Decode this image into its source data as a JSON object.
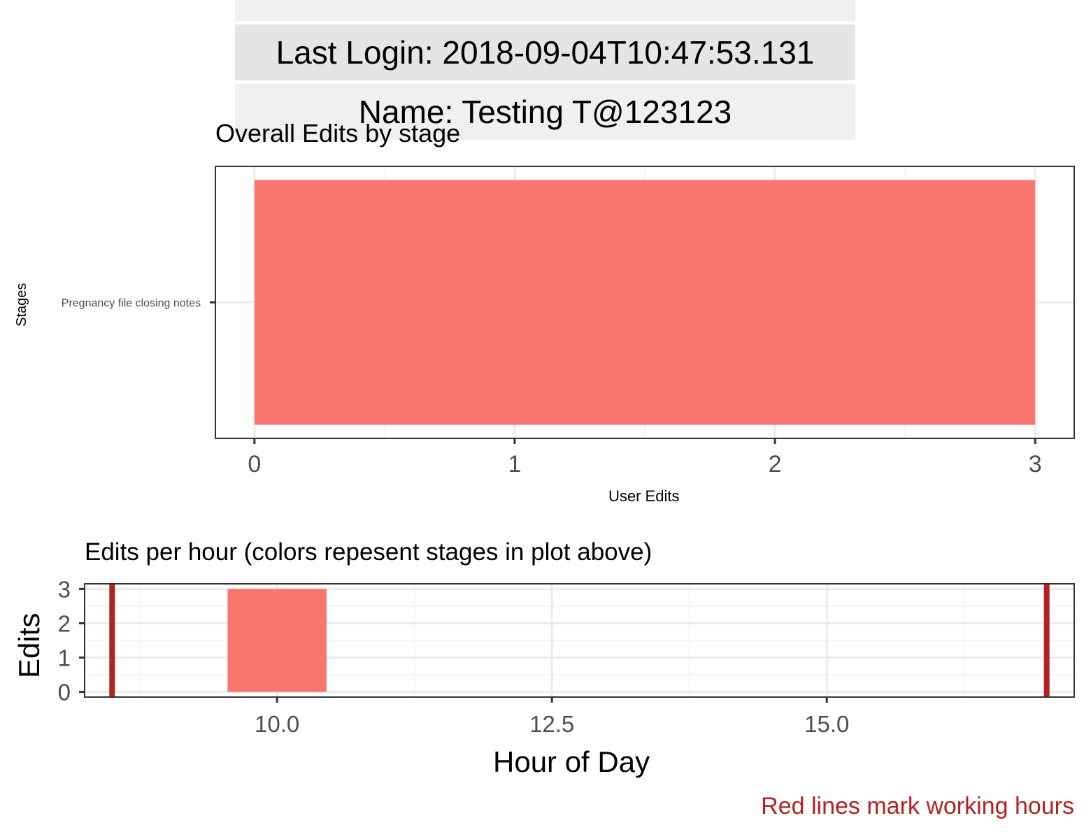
{
  "info_table": {
    "rows": [
      "",
      "Last Login: 2018-09-04T10:47:53.131",
      "Name: Testing T@123123"
    ]
  },
  "colors": {
    "stage_fill": "#f8766d",
    "working_hours_line": "#b22222",
    "panel_border": "#333333",
    "grid_major": "#ebebeb",
    "grid_minor": "#f5f5f5",
    "tick_text": "#4d4d4d"
  },
  "chart_data": [
    {
      "type": "bar",
      "orientation": "horizontal",
      "title": "Overall Edits by stage",
      "xlabel": "User Edits",
      "ylabel": "Stages",
      "categories": [
        "Pregnancy file closing notes"
      ],
      "values": [
        3
      ],
      "xlim": [
        -0.15,
        3.15
      ],
      "xticks": [
        "0",
        "1",
        "2",
        "3"
      ],
      "grid": true,
      "legend": "none"
    },
    {
      "type": "bar",
      "title": "Edits per hour (colors repesent stages in plot above)",
      "xlabel": "Hour of Day",
      "ylabel": "Edits",
      "x": [
        10
      ],
      "values": [
        3
      ],
      "bar_width": 0.9,
      "xlim": [
        8.25,
        17.25
      ],
      "ylim": [
        -0.15,
        3.15
      ],
      "xticks": [
        "10.0",
        "12.5",
        "15.0"
      ],
      "yticks": [
        "0",
        "1",
        "2",
        "3"
      ],
      "reference_lines_x": [
        8.5,
        17
      ],
      "caption": "Red lines mark working hours",
      "grid": true,
      "legend": "none"
    }
  ]
}
